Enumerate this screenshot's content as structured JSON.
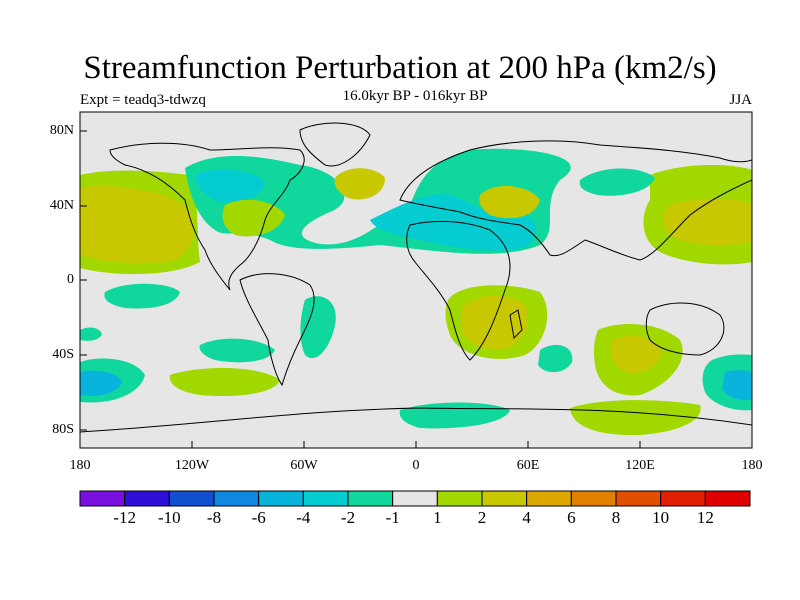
{
  "title": "Streamfunction Perturbation at 200 hPa (km2/s)",
  "experiment": "Expt = teadq3-tdwzq",
  "period": "16.0kyr BP - 016kyr BP",
  "season": "JJA",
  "map": {
    "background_color": "#e6e6e6",
    "lat_ticks": [
      "80N",
      "40N",
      "0",
      "40S",
      "80S"
    ],
    "lon_ticks": [
      "180",
      "120W",
      "60W",
      "0",
      "60E",
      "120E",
      "180"
    ]
  },
  "colorbar": {
    "colors": [
      "#7a10e0",
      "#3010d8",
      "#1050d0",
      "#0e88e0",
      "#08b4dc",
      "#04ccd0",
      "#10d89c",
      "#e6e6e6",
      "#a0d800",
      "#c8c800",
      "#dca800",
      "#e08000",
      "#e05000",
      "#e02000",
      "#e00000"
    ],
    "labels": [
      "-12",
      "-10",
      "-8",
      "-6",
      "-4",
      "-2",
      "-1",
      "1",
      "2",
      "4",
      "6",
      "8",
      "10",
      "12"
    ]
  }
}
